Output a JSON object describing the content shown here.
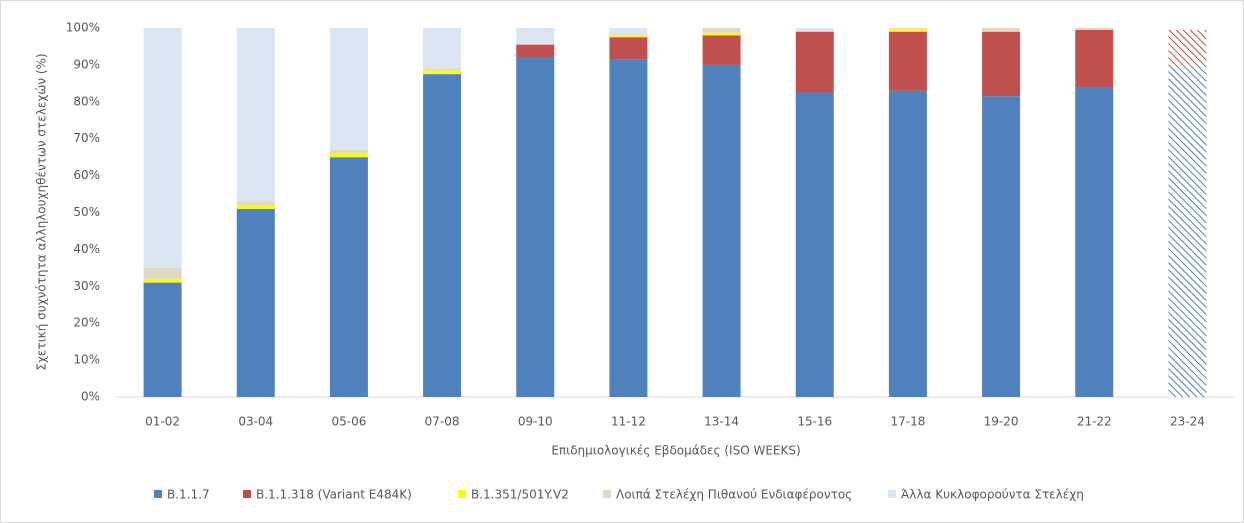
{
  "chart_data": {
    "type": "stacked_bar",
    "y_label": "Σχετική συχνότητα αλληλουχηθέντων στελεχών (%)",
    "x_label": "Επιδημιολογικές Εβδομάδες (ISO WEEKS)",
    "categories": [
      "01-02",
      "03-04",
      "05-06",
      "07-08",
      "09-10",
      "11-12",
      "13-14",
      "15-16",
      "17-18",
      "19-20",
      "21-22",
      "23-24"
    ],
    "hatched": [
      false,
      false,
      false,
      false,
      false,
      false,
      false,
      false,
      false,
      false,
      false,
      true
    ],
    "series": [
      {
        "name": "B.1.1.7",
        "color": "#4f81bd",
        "values": [
          31,
          51,
          65,
          87.5,
          92,
          91.5,
          90,
          82.5,
          83,
          81.5,
          84,
          90
        ]
      },
      {
        "name": "B.1.1.318 (Variant E484K)",
        "color": "#c0504d",
        "values": [
          0,
          0,
          0,
          0,
          3.5,
          6,
          8,
          16.5,
          16,
          17.5,
          15.5,
          9.5
        ]
      },
      {
        "name": "B.1.351/501Y.V2",
        "color": "#ffff00",
        "values": [
          1,
          1,
          1,
          1,
          0,
          0.3,
          0.7,
          0,
          0.7,
          0,
          0,
          0
        ]
      },
      {
        "name": "Λοιπά Στελέχη Πιθανού Ενδιαφέροντος",
        "color": "#ddd9c4",
        "values": [
          3,
          1,
          1,
          0.5,
          0,
          0.2,
          1.3,
          0,
          0.3,
          1,
          0.5,
          0
        ]
      },
      {
        "name": "Άλλα Κυκλοφορούντα Στελέχη",
        "color": "#dce6f2",
        "values": [
          65,
          47,
          33,
          11,
          4.5,
          2,
          0,
          1,
          0,
          0,
          0,
          0
        ]
      }
    ],
    "ylim": [
      0,
      100
    ],
    "yticks": [
      {
        "value": 0,
        "label": "0%"
      },
      {
        "value": 10,
        "label": "10%"
      },
      {
        "value": 20,
        "label": "20%"
      },
      {
        "value": 30,
        "label": "30%"
      },
      {
        "value": 40,
        "label": "40%"
      },
      {
        "value": 50,
        "label": "50%"
      },
      {
        "value": 60,
        "label": "60%"
      },
      {
        "value": 70,
        "label": "70%"
      },
      {
        "value": 80,
        "label": "80%"
      },
      {
        "value": 90,
        "label": "90%"
      },
      {
        "value": 100,
        "label": "100%"
      }
    ],
    "grid": false
  }
}
